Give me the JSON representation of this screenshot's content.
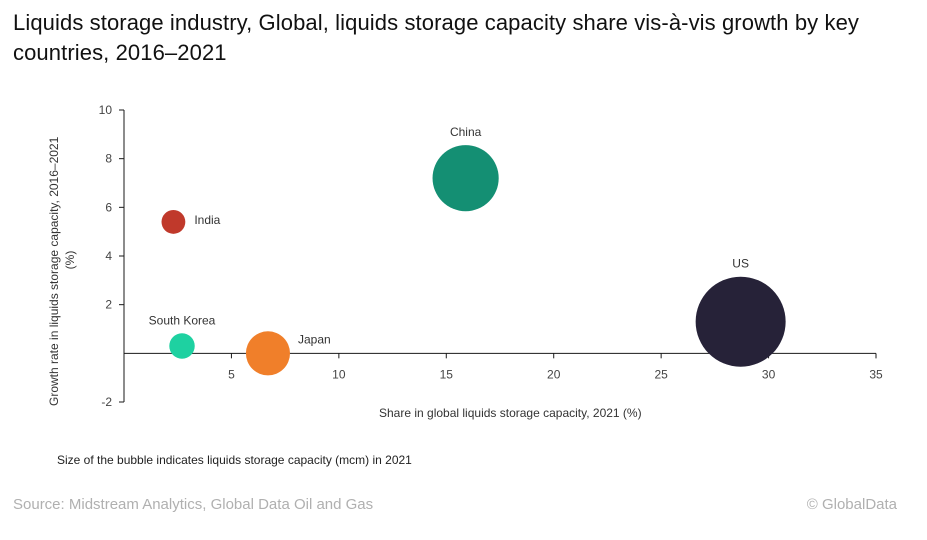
{
  "chart_data": {
    "type": "scatter",
    "subtype": "bubble",
    "title": "Liquids storage industry, Global, liquids storage capacity share vis-à-vis growth by key countries, 2016–2021",
    "xlabel": "Share in global liquids storage capacity, 2021 (%)",
    "ylabel": "Growth rate in liquids storage capacity, 2016–2021 (%)",
    "xlim": [
      0,
      35
    ],
    "ylim": [
      -2,
      10
    ],
    "xticks": [
      5,
      10,
      15,
      20,
      25,
      30,
      35
    ],
    "yticks": [
      -2,
      2,
      4,
      6,
      8,
      10
    ],
    "grid": false,
    "size_note": "Size of the bubble indicates liquids storage capacity (mcm) in 2021",
    "points": [
      {
        "label": "India",
        "x": 2.3,
        "y": 5.4,
        "relative_size": 7,
        "color": "#C0392B",
        "label_pos": "right"
      },
      {
        "label": "South Korea",
        "x": 2.7,
        "y": 0.3,
        "relative_size": 8,
        "color": "#1ED1A1",
        "label_pos": "top"
      },
      {
        "label": "Japan",
        "x": 6.7,
        "y": 0.0,
        "relative_size": 24,
        "color": "#F07F2A",
        "label_pos": "top-right"
      },
      {
        "label": "China",
        "x": 15.9,
        "y": 7.2,
        "relative_size": 54,
        "color": "#148F73",
        "label_pos": "top"
      },
      {
        "label": "US",
        "x": 28.7,
        "y": 1.3,
        "relative_size": 100,
        "color": "#262238",
        "label_pos": "top"
      }
    ]
  },
  "footer": {
    "source": "Source: Midstream Analytics, Global Data Oil and Gas",
    "copyright": "© GlobalData"
  }
}
